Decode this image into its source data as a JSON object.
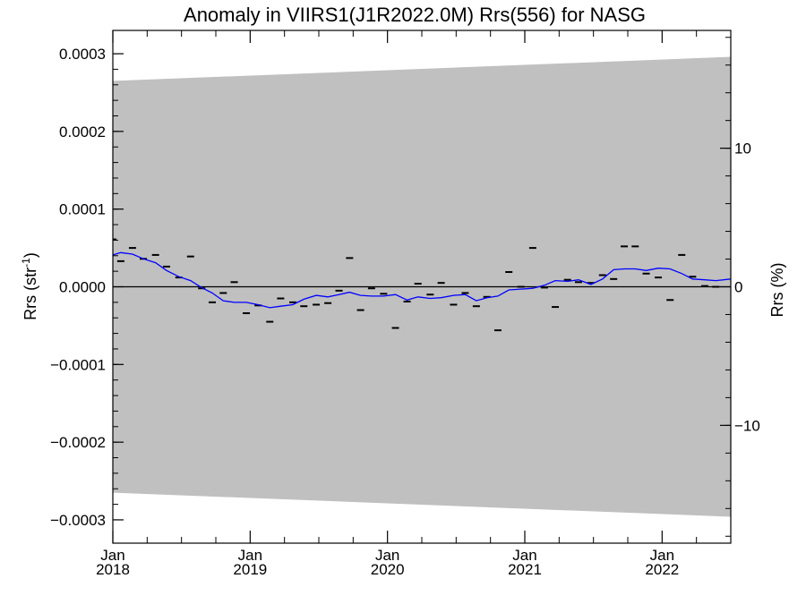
{
  "chart_data": {
    "type": "line",
    "title": "Anomaly in VIIRS1(J1R2022.0M) Rrs(556) for NASG",
    "ylabel_left": "Rrs (str",
    "ylabel_left_sup": "-1",
    "ylabel_left_close": ")",
    "ylabel_right": "Rrs (%)",
    "xlim": [
      2018.0,
      2022.5
    ],
    "ylim_left": [
      -0.00033,
      0.00033
    ],
    "ylim_right": [
      -18.5,
      18.5
    ],
    "grid": false,
    "colors": {
      "band": "#c0c0c0",
      "mean_line": "#0000ff",
      "points": "#000000",
      "zero_line": "#000000"
    },
    "left_ticks": [
      {
        "value": 0.0003,
        "label": "0.0003"
      },
      {
        "value": 0.0002,
        "label": "0.0002"
      },
      {
        "value": 0.0001,
        "label": "0.0001"
      },
      {
        "value": 0.0,
        "label": "0.0000"
      },
      {
        "value": -0.0001,
        "label": "−0.0001"
      },
      {
        "value": -0.0002,
        "label": "−0.0002"
      },
      {
        "value": -0.0003,
        "label": "−0.0003"
      }
    ],
    "right_ticks": [
      {
        "value": 10,
        "label": "10"
      },
      {
        "value": 0,
        "label": "0"
      },
      {
        "value": -10,
        "label": "−10"
      }
    ],
    "x_ticks": [
      {
        "value": 2018.0,
        "month": "Jan",
        "year": "2018"
      },
      {
        "value": 2019.0,
        "month": "Jan",
        "year": "2019"
      },
      {
        "value": 2020.0,
        "month": "Jan",
        "year": "2020"
      },
      {
        "value": 2021.0,
        "month": "Jan",
        "year": "2021"
      },
      {
        "value": 2022.0,
        "month": "Jan",
        "year": "2022"
      }
    ],
    "band": {
      "x": [
        2018.0,
        2022.5
      ],
      "upper": [
        0.000265,
        0.000296
      ],
      "lower": [
        -0.000265,
        -0.000296
      ]
    },
    "series": [
      {
        "type": "scatter",
        "x": [
          2018.0,
          2018.058,
          2018.143,
          2018.222,
          2018.311,
          2018.391,
          2018.481,
          2018.566,
          2018.647,
          2018.724,
          2018.804,
          2018.884,
          2018.972,
          2019.058,
          2019.143,
          2019.222,
          2019.311,
          2019.391,
          2019.481,
          2019.566,
          2019.647,
          2019.724,
          2019.804,
          2019.884,
          2019.972,
          2020.058,
          2020.143,
          2020.222,
          2020.311,
          2020.391,
          2020.481,
          2020.566,
          2020.647,
          2020.724,
          2020.804,
          2020.884,
          2020.972,
          2021.058,
          2021.143,
          2021.222,
          2021.311,
          2021.391,
          2021.481,
          2021.566,
          2021.647,
          2021.724,
          2021.804,
          2021.884,
          2021.972,
          2022.058,
          2022.143,
          2022.222,
          2022.311,
          2022.391
        ],
        "values": [
          6.1e-05,
          3.3e-05,
          5e-05,
          3.6e-05,
          4.1e-05,
          2.6e-05,
          1.2e-05,
          3.9e-05,
          -2e-06,
          -2e-05,
          -8e-06,
          6e-06,
          -3.4e-05,
          -2.4e-05,
          -4.5e-05,
          -1.5e-05,
          -2e-05,
          -2.5e-05,
          -2.3e-05,
          -2.1e-05,
          -5e-06,
          3.7e-05,
          -3e-05,
          -2e-06,
          -9e-06,
          -5.3e-05,
          -1.9e-05,
          4e-06,
          -1e-05,
          5e-06,
          -2.3e-05,
          -8e-06,
          -2.5e-05,
          -1.3e-05,
          -5.6e-05,
          1.9e-05,
          0.0,
          5e-05,
          -1e-06,
          -2.6e-05,
          9e-06,
          6e-06,
          5e-06,
          1.5e-05,
          1e-05,
          5.2e-05,
          5.2e-05,
          1.7e-05,
          1.2e-05,
          -1.7e-05,
          4.1e-05,
          1.3e-05,
          1e-06,
          0.0
        ]
      },
      {
        "type": "line",
        "x": [
          2018.0,
          2018.058,
          2018.143,
          2018.222,
          2018.311,
          2018.391,
          2018.481,
          2018.566,
          2018.647,
          2018.724,
          2018.804,
          2018.884,
          2018.972,
          2019.058,
          2019.143,
          2019.222,
          2019.311,
          2019.391,
          2019.481,
          2019.566,
          2019.647,
          2019.724,
          2019.804,
          2019.884,
          2019.972,
          2020.058,
          2020.143,
          2020.222,
          2020.311,
          2020.391,
          2020.481,
          2020.566,
          2020.647,
          2020.724,
          2020.804,
          2020.884,
          2020.972,
          2021.058,
          2021.143,
          2021.222,
          2021.311,
          2021.391,
          2021.481,
          2021.566,
          2021.647,
          2021.724,
          2021.804,
          2021.884,
          2021.972,
          2022.058,
          2022.143,
          2022.222,
          2022.311,
          2022.391,
          2022.5
        ],
        "values": [
          4.1e-05,
          4.4e-05,
          4.2e-05,
          3.6e-05,
          3.1e-05,
          2.1e-05,
          1.3e-05,
          8e-06,
          -1e-06,
          -8e-06,
          -1.8e-05,
          -2e-05,
          -2e-05,
          -2.3e-05,
          -2.7e-05,
          -2.5e-05,
          -2.3e-05,
          -1.6e-05,
          -1.1e-05,
          -1.3e-05,
          -1e-05,
          -7e-06,
          -1.1e-05,
          -1.2e-05,
          -1.2e-05,
          -1e-05,
          -1.7e-05,
          -1.3e-05,
          -1.5e-05,
          -1.4e-05,
          -1.1e-05,
          -1e-05,
          -1.8e-05,
          -1.4e-05,
          -1.2e-05,
          -4e-06,
          -3e-06,
          -2e-06,
          2e-06,
          8e-06,
          7e-06,
          9e-06,
          3e-06,
          1e-05,
          2.2e-05,
          2.3e-05,
          2.3e-05,
          2.1e-05,
          2.4e-05,
          2.3e-05,
          1.7e-05,
          1e-05,
          9e-06,
          8e-06,
          1e-05
        ]
      }
    ]
  }
}
